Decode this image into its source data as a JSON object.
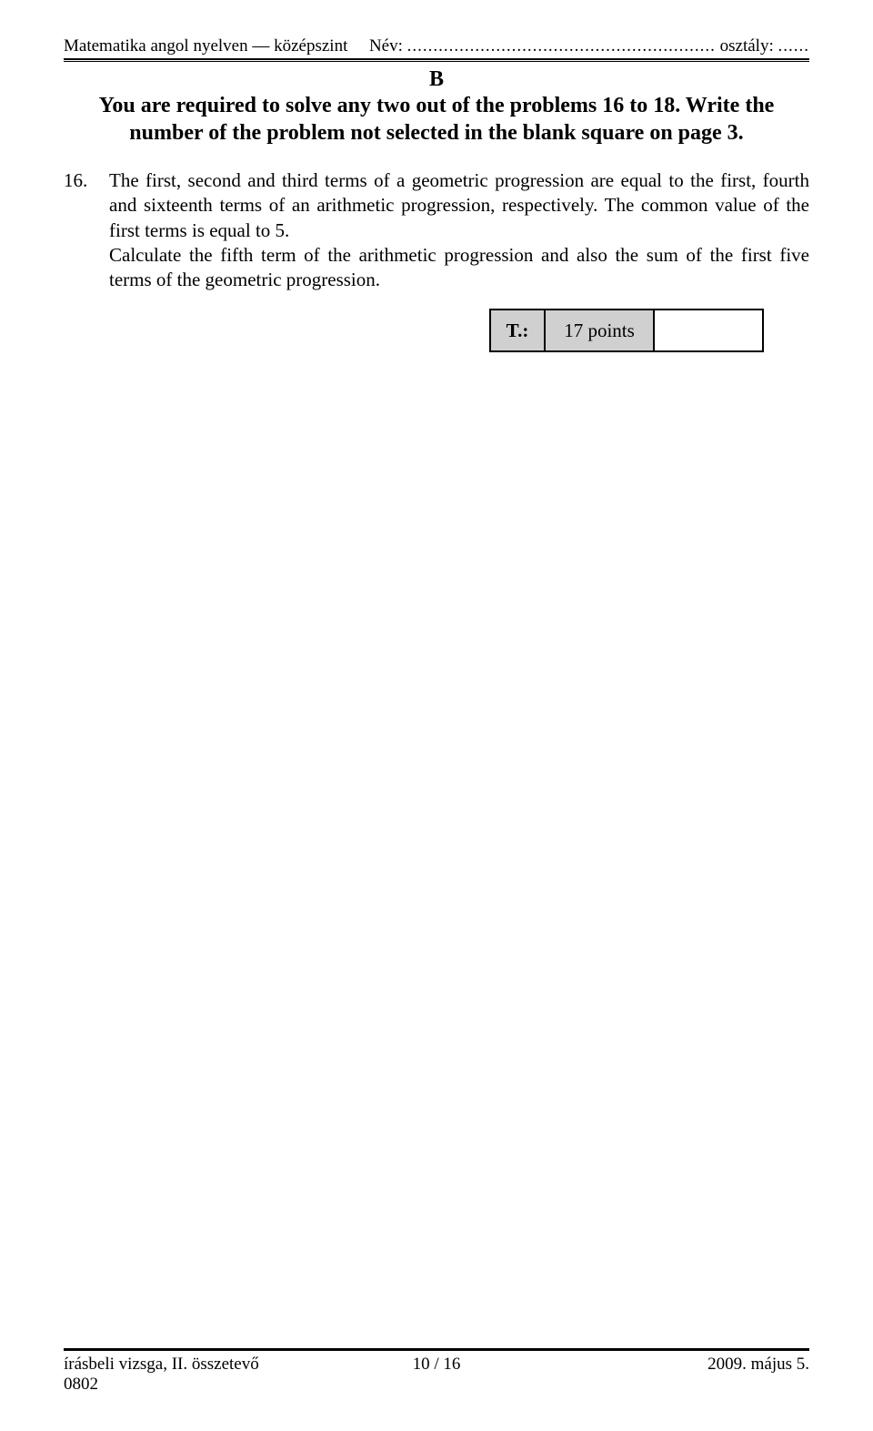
{
  "header": {
    "subject": "Matematika angol nyelven — középszint",
    "name_label": "Név:",
    "name_dots": "...........................................................",
    "class_label": "osztály:",
    "class_dots": "......"
  },
  "section_label": "B",
  "instructions_line1": "You are required to solve any two out of the problems 16 to 18. Write the",
  "instructions_line2": "number of the problem not selected in the blank square on page 3.",
  "problem": {
    "number": "16.",
    "text": "The first, second and third terms of a geometric progression are equal to the first, fourth and sixteenth terms of an arithmetic progression, respectively. The common value of the first terms is equal to 5.\nCalculate the fifth term of the arithmetic progression and also the sum of the first five terms of the geometric progression."
  },
  "points": {
    "label": "T.:",
    "value": "17 points"
  },
  "footer": {
    "left_line1": "írásbeli vizsga, II. összetevő",
    "left_line2": "0802",
    "center": "10 / 16",
    "right": "2009. május 5."
  }
}
